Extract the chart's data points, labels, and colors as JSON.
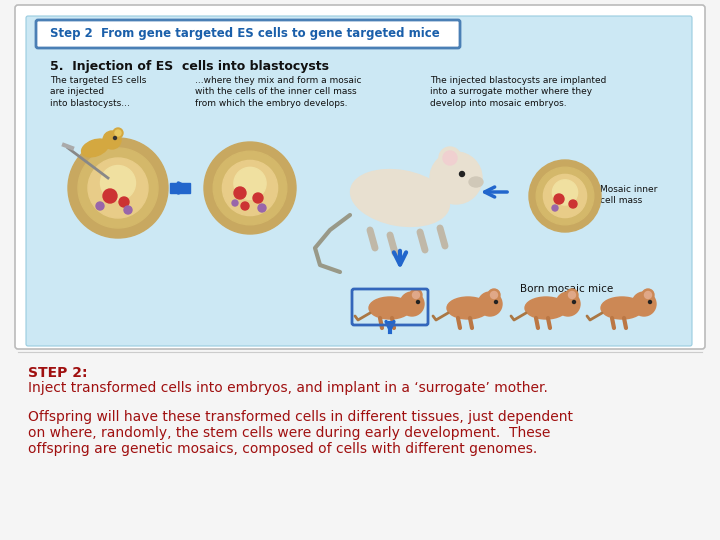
{
  "bg_color": "#f5f5f5",
  "outer_bg": "#ffffff",
  "outer_border": "#bbbbbb",
  "inner_bg": "#cce8f4",
  "inner_border": "#99cce0",
  "header_box_bg": "#ffffff",
  "header_box_border": "#4a7fb5",
  "header_text": "Step 2  From gene targeted ES cells to gene targeted mice",
  "header_text_color": "#1a5faa",
  "section_title": "5.  Injection of ES  cells into blastocysts",
  "col1_text": "The targeted ES cells\nare injected\ninto blastocysts...",
  "col2_text": "...where they mix and form a mosaic\nwith the cells of the inner cell mass\nfrom which the embryo develops.",
  "col3_text": "The injected blastocysts are implanted\ninto a surrogate mother where they\ndevelop into mosaic embryos.",
  "mosaic_label": "Mosaic inner\ncell mass",
  "born_label": "Born mosaic mice",
  "step2_bold": "STEP 2:",
  "step2_line": "Inject transformed cells into embryos, and implant in a ‘surrogate’ mother.",
  "offspring_line1": "Offspring will have these transformed cells in different tissues, just dependent",
  "offspring_line2": "on where, randomly, the stem cells were during early development.  These",
  "offspring_line3": "offspring are genetic mosaics, composed of cells with different genomes.",
  "red_color": "#a01010",
  "black_color": "#111111",
  "blue_arrow": "#2266cc",
  "blasto_outer": "#c8a860",
  "blasto_mid": "#d4b86a",
  "blasto_inner": "#e8cc88",
  "blasto_center": "#f0e0a0",
  "red_dot": "#cc3333",
  "mouse_body": "#e8e0d0",
  "mouse_highlight": "#3366bb"
}
